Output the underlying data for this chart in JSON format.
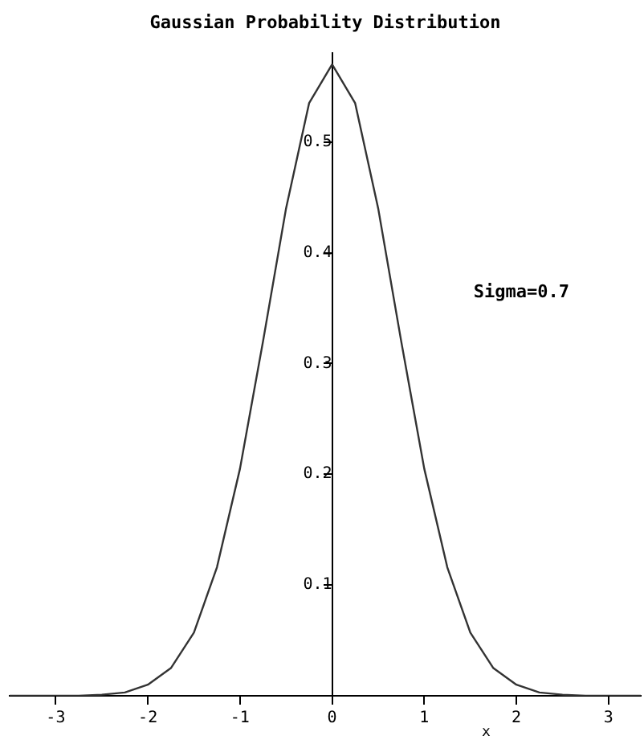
{
  "chart_data": {
    "type": "line",
    "title": "Gaussian Probability Distribution",
    "xlabel": "x",
    "annotations": [
      "Sigma=0.7"
    ],
    "x": [
      -3.5,
      -3,
      -2.75,
      -2.5,
      -2.25,
      -2,
      -1.75,
      -1.5,
      -1.25,
      -1,
      -0.75,
      -0.5,
      -0.25,
      0,
      0.25,
      0.5,
      0.75,
      1,
      1.25,
      1.5,
      1.75,
      2,
      2.25,
      2.5,
      2.75,
      3,
      3.35
    ],
    "series": [
      {
        "color": "#333333",
        "values": [
          0,
          0,
          0,
          0.001,
          0.003,
          0.01,
          0.025,
          0.057,
          0.116,
          0.205,
          0.32,
          0.44,
          0.535,
          0.57,
          0.535,
          0.44,
          0.32,
          0.205,
          0.116,
          0.057,
          0.025,
          0.01,
          0.003,
          0.001,
          0,
          0,
          0
        ]
      }
    ],
    "xlim": [
      -3.5,
      3.35
    ],
    "xticks": [
      -3,
      -2,
      -1,
      0,
      1,
      2,
      3
    ],
    "ylim": [
      0,
      0.58
    ],
    "yticks": [
      0.1,
      0.2,
      0.3,
      0.4,
      0.5
    ],
    "grid": false,
    "legend": false,
    "marker": "none",
    "line_style": "solid"
  }
}
